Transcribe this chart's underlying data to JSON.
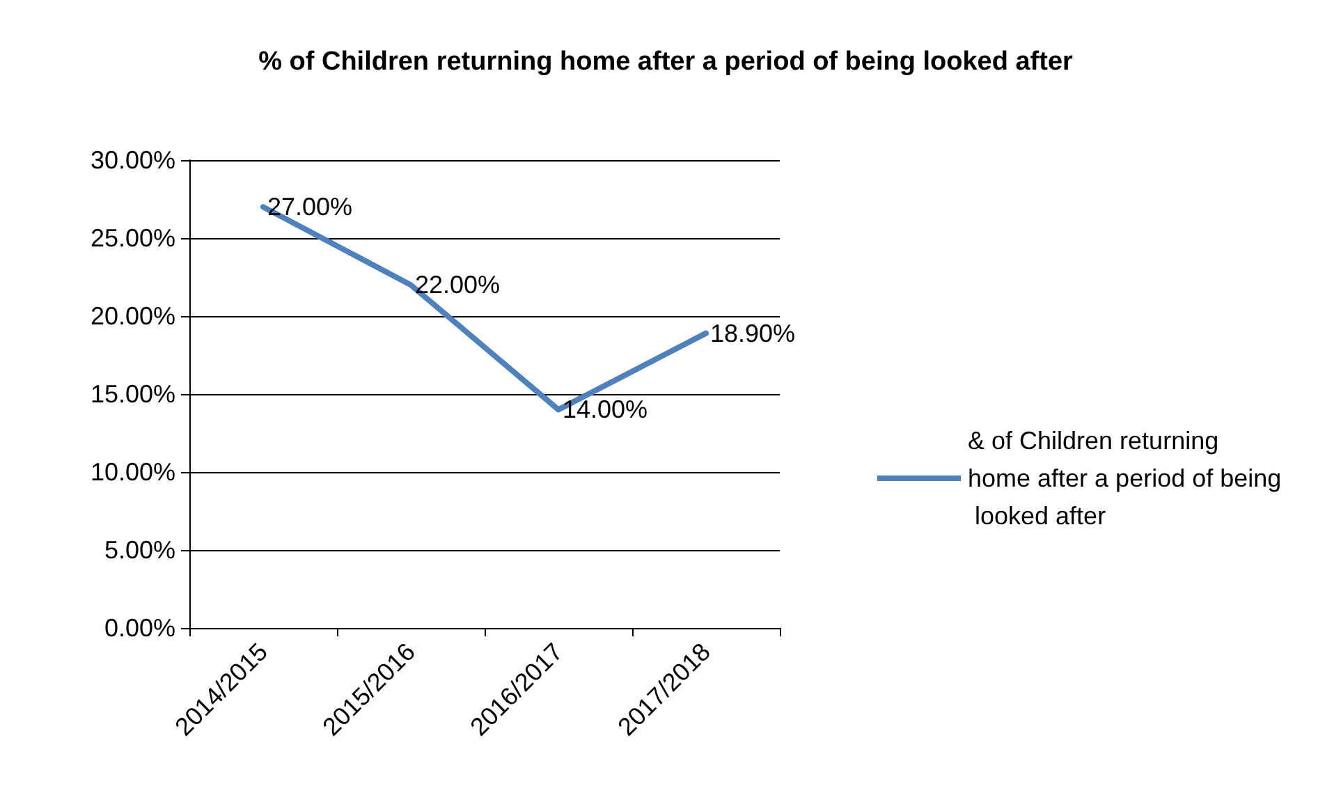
{
  "chart_data": {
    "type": "line",
    "title": "% of Children returning home after a period of being looked after",
    "categories": [
      "2014/2015",
      "2015/2016",
      "2016/2017",
      "2017/2018"
    ],
    "series": [
      {
        "name": "& of Children returning home after a period of being looked after",
        "color": "#4f81bd",
        "values": [
          27,
          22,
          14,
          18.9
        ],
        "value_labels": [
          "27.00%",
          "22.00%",
          "14.00%",
          "18.90%"
        ]
      }
    ],
    "ylim": [
      0,
      30
    ],
    "yticks": [
      {
        "value": 0,
        "label": "0.00%"
      },
      {
        "value": 5,
        "label": "5.00%"
      },
      {
        "value": 10,
        "label": "10.00%"
      },
      {
        "value": 15,
        "label": "15.00%"
      },
      {
        "value": 20,
        "label": "20.00%"
      },
      {
        "value": 25,
        "label": "25.00%"
      },
      {
        "value": 30,
        "label": "30.00%"
      }
    ],
    "grid": "y",
    "legend": "right",
    "marker": "none",
    "line_style": "solid"
  }
}
